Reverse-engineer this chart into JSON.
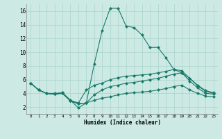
{
  "xlabel": "Humidex (Indice chaleur)",
  "bg_color": "#cce9e4",
  "grid_color": "#aad4cc",
  "line_color": "#1a7a6a",
  "xlim": [
    -0.5,
    23.5
  ],
  "ylim": [
    1.0,
    17.0
  ],
  "yticks": [
    2,
    4,
    6,
    8,
    10,
    12,
    14,
    16
  ],
  "xticks": [
    0,
    1,
    2,
    3,
    4,
    5,
    6,
    7,
    8,
    9,
    10,
    11,
    12,
    13,
    14,
    15,
    16,
    17,
    18,
    19,
    20,
    21,
    22,
    23
  ],
  "lines": [
    [
      5.5,
      4.5,
      4.0,
      4.0,
      4.1,
      3.0,
      1.9,
      2.6,
      8.3,
      13.2,
      16.4,
      16.4,
      13.8,
      13.6,
      12.5,
      10.7,
      10.7,
      9.2,
      7.5,
      7.0,
      6.2,
      5.1,
      4.3,
      4.0
    ],
    [
      5.5,
      4.5,
      4.0,
      3.9,
      4.1,
      3.0,
      2.6,
      4.5,
      5.2,
      5.5,
      6.0,
      6.3,
      6.5,
      6.6,
      6.7,
      6.8,
      7.0,
      7.2,
      7.5,
      7.3,
      6.2,
      5.2,
      4.4,
      4.1
    ],
    [
      5.5,
      4.5,
      4.0,
      3.9,
      4.0,
      2.9,
      2.5,
      2.6,
      3.8,
      4.5,
      5.0,
      5.2,
      5.5,
      5.6,
      5.8,
      6.0,
      6.2,
      6.5,
      6.8,
      7.0,
      5.8,
      4.8,
      4.0,
      3.9
    ],
    [
      5.5,
      4.5,
      4.0,
      3.9,
      4.0,
      2.9,
      2.5,
      2.6,
      3.0,
      3.3,
      3.5,
      3.8,
      4.0,
      4.1,
      4.2,
      4.3,
      4.5,
      4.7,
      5.0,
      5.2,
      4.5,
      4.0,
      3.6,
      3.5
    ]
  ]
}
